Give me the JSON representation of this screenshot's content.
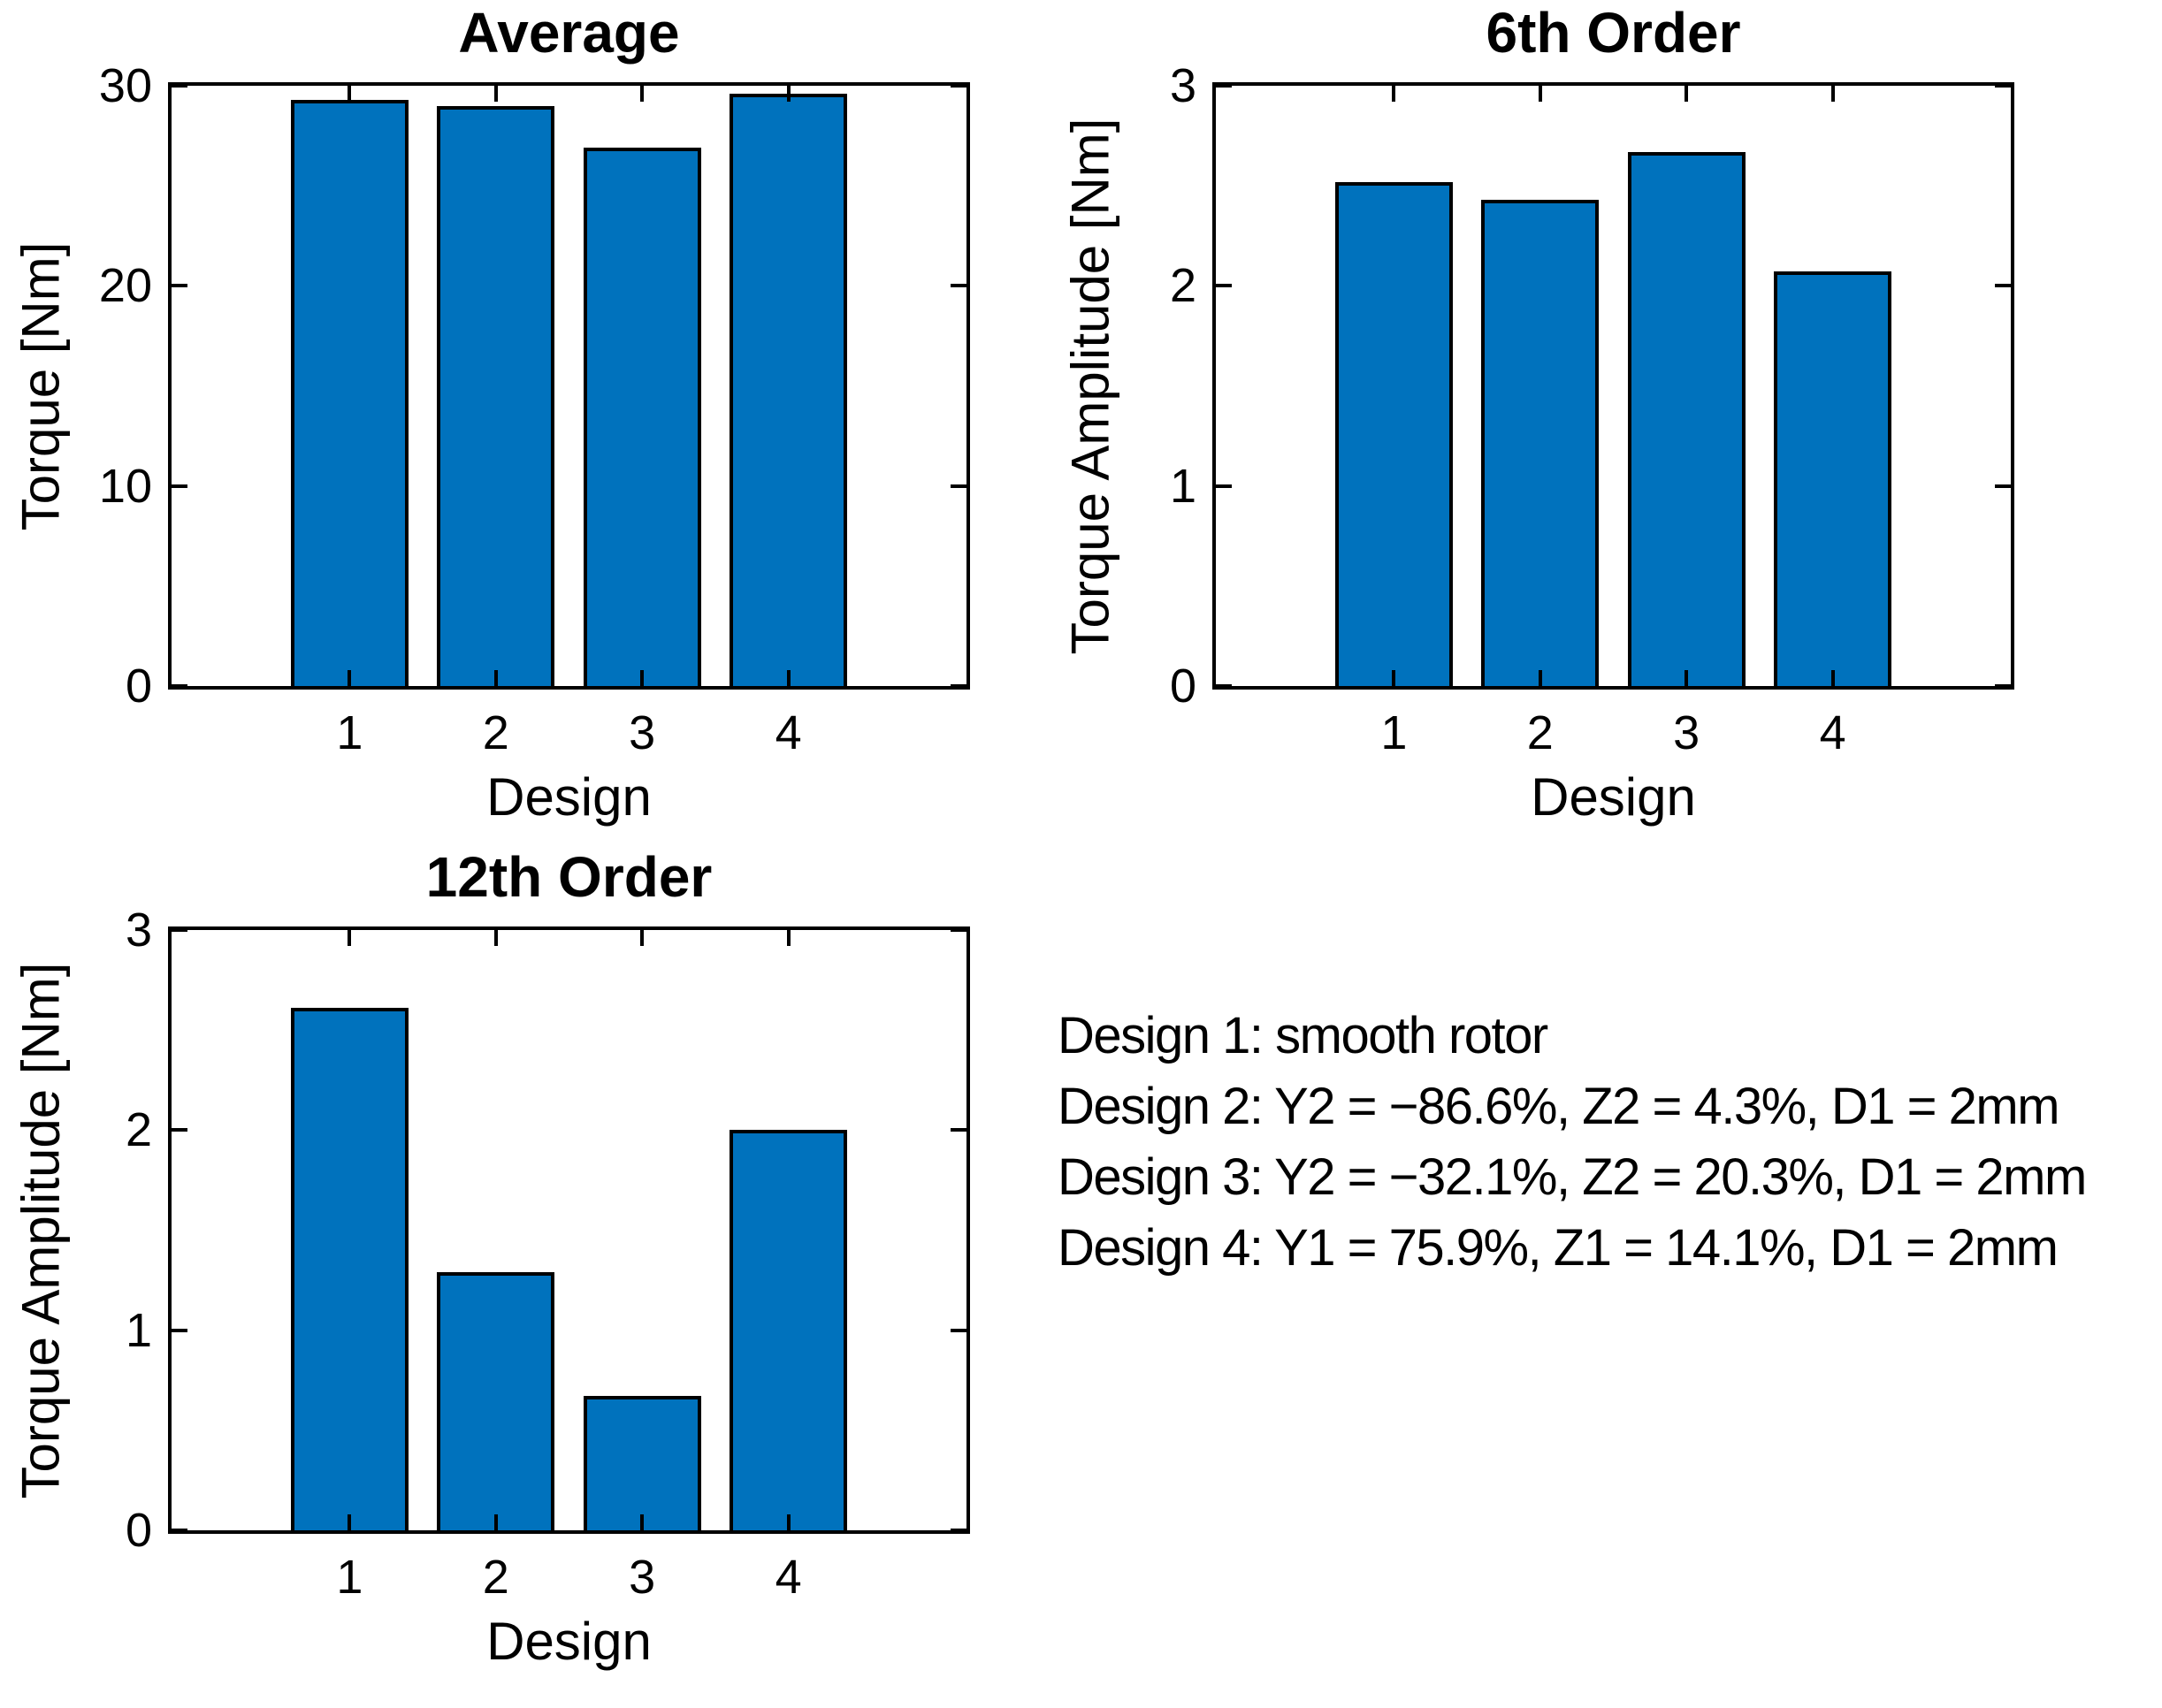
{
  "figure": {
    "background": "#ffffff",
    "bar_fill_color": "#0072BD",
    "bar_edge_color": "#000000",
    "axis_color": "#000000"
  },
  "chart_data": [
    {
      "id": "average",
      "type": "bar",
      "title": "Average",
      "xlabel": "Design",
      "ylabel": "Torque [Nm]",
      "categories": [
        "1",
        "2",
        "3",
        "4"
      ],
      "values": [
        29.3,
        29.0,
        26.9,
        29.6
      ],
      "ylim": [
        0,
        30
      ],
      "yticks": [
        0,
        10,
        20,
        30
      ],
      "grid": false,
      "legend": null
    },
    {
      "id": "order-6",
      "type": "bar",
      "title": "6th Order",
      "xlabel": "Design",
      "ylabel": "Torque Amplitude [Nm]",
      "categories": [
        "1",
        "2",
        "3",
        "4"
      ],
      "values": [
        2.52,
        2.43,
        2.67,
        2.07
      ],
      "ylim": [
        0,
        3
      ],
      "yticks": [
        0,
        1,
        2,
        3
      ],
      "grid": false,
      "legend": null
    },
    {
      "id": "order-12",
      "type": "bar",
      "title": "12th Order",
      "xlabel": "Design",
      "ylabel": "Torque Amplitude [Nm]",
      "categories": [
        "1",
        "2",
        "3",
        "4"
      ],
      "values": [
        2.61,
        1.29,
        0.67,
        2.0
      ],
      "ylim": [
        0,
        3
      ],
      "yticks": [
        0,
        1,
        2,
        3
      ],
      "grid": false,
      "legend": null
    }
  ],
  "annotation": {
    "lines": [
      "Design 1: smooth rotor",
      "Design 2: Y2 = −86.6%, Z2 = 4.3%, D1 = 2mm",
      "Design 3: Y2 = −32.1%, Z2 = 20.3%, D1 = 2mm",
      "Design 4: Y1 = 75.9%, Z1 = 14.1%, D1 = 2mm"
    ]
  }
}
